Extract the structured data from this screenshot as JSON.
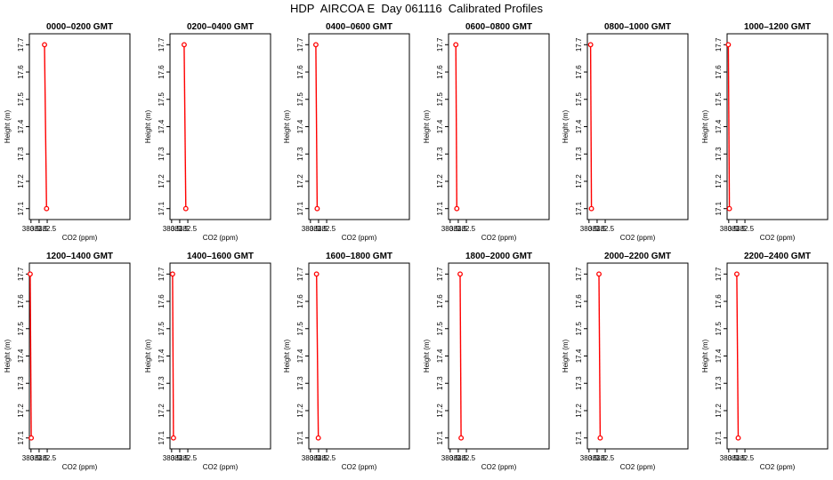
{
  "figure": {
    "title": "HDP  AIRCOA E  Day 061116  Calibrated Profiles"
  },
  "chart_data": [
    {
      "type": "line",
      "title": "0000–0200 GMT",
      "xlabel": "CO2 (ppm)",
      "ylabel": "Height (m)",
      "xlim": [
        380.3,
        392.7
      ],
      "ylim": [
        17.06,
        17.74
      ],
      "xticks": [
        380.5,
        381.5,
        382.5
      ],
      "yticks": [
        17.1,
        17.2,
        17.3,
        17.4,
        17.5,
        17.6,
        17.7
      ],
      "series": [
        {
          "x": [
            382.17,
            382.42
          ],
          "y": [
            17.7,
            17.1
          ],
          "color": "#ff0000"
        }
      ]
    },
    {
      "type": "line",
      "title": "0200–0400 GMT",
      "xlabel": "CO2 (ppm)",
      "ylabel": "Height (m)",
      "xlim": [
        380.3,
        392.7
      ],
      "ylim": [
        17.06,
        17.74
      ],
      "xticks": [
        380.5,
        381.5,
        382.5
      ],
      "yticks": [
        17.1,
        17.2,
        17.3,
        17.4,
        17.5,
        17.6,
        17.7
      ],
      "series": [
        {
          "x": [
            382.05,
            382.25
          ],
          "y": [
            17.7,
            17.1
          ],
          "color": "#ff0000"
        }
      ]
    },
    {
      "type": "line",
      "title": "0400–0600 GMT",
      "xlabel": "CO2 (ppm)",
      "ylabel": "Height (m)",
      "xlim": [
        380.3,
        392.7
      ],
      "ylim": [
        17.06,
        17.74
      ],
      "xticks": [
        380.5,
        381.5,
        382.5
      ],
      "yticks": [
        17.1,
        17.2,
        17.3,
        17.4,
        17.5,
        17.6,
        17.7
      ],
      "series": [
        {
          "x": [
            381.17,
            381.33
          ],
          "y": [
            17.7,
            17.1
          ],
          "color": "#ff0000"
        }
      ]
    },
    {
      "type": "line",
      "title": "0600–0800 GMT",
      "xlabel": "CO2 (ppm)",
      "ylabel": "Height (m)",
      "xlim": [
        380.3,
        392.7
      ],
      "ylim": [
        17.06,
        17.74
      ],
      "xticks": [
        380.5,
        381.5,
        382.5
      ],
      "yticks": [
        17.1,
        17.2,
        17.3,
        17.4,
        17.5,
        17.6,
        17.7
      ],
      "series": [
        {
          "x": [
            381.2,
            381.32
          ],
          "y": [
            17.7,
            17.1
          ],
          "color": "#ff0000"
        }
      ]
    },
    {
      "type": "line",
      "title": "0800–1000 GMT",
      "xlabel": "CO2 (ppm)",
      "ylabel": "Height (m)",
      "xlim": [
        380.3,
        392.7
      ],
      "ylim": [
        17.06,
        17.74
      ],
      "xticks": [
        380.5,
        381.5,
        382.5
      ],
      "yticks": [
        17.1,
        17.2,
        17.3,
        17.4,
        17.5,
        17.6,
        17.7
      ],
      "series": [
        {
          "x": [
            380.7,
            380.8
          ],
          "y": [
            17.7,
            17.1
          ],
          "color": "#ff0000"
        }
      ]
    },
    {
      "type": "line",
      "title": "1000–1200 GMT",
      "xlabel": "CO2 (ppm)",
      "ylabel": "Height (m)",
      "xlim": [
        380.3,
        392.7
      ],
      "ylim": [
        17.06,
        17.74
      ],
      "xticks": [
        380.5,
        381.5,
        382.5
      ],
      "yticks": [
        17.1,
        17.2,
        17.3,
        17.4,
        17.5,
        17.6,
        17.7
      ],
      "series": [
        {
          "x": [
            380.45,
            380.58
          ],
          "y": [
            17.7,
            17.1
          ],
          "color": "#ff0000"
        }
      ]
    },
    {
      "type": "line",
      "title": "1200–1400 GMT",
      "xlabel": "CO2 (ppm)",
      "ylabel": "Height (m)",
      "xlim": [
        380.3,
        392.7
      ],
      "ylim": [
        17.06,
        17.74
      ],
      "xticks": [
        380.5,
        381.5,
        382.5
      ],
      "yticks": [
        17.1,
        17.2,
        17.3,
        17.4,
        17.5,
        17.6,
        17.7
      ],
      "series": [
        {
          "x": [
            380.4,
            380.53
          ],
          "y": [
            17.7,
            17.1
          ],
          "color": "#ff0000"
        }
      ]
    },
    {
      "type": "line",
      "title": "1400–1600 GMT",
      "xlabel": "CO2 (ppm)",
      "ylabel": "Height (m)",
      "xlim": [
        380.3,
        392.7
      ],
      "ylim": [
        17.06,
        17.74
      ],
      "xticks": [
        380.5,
        381.5,
        382.5
      ],
      "yticks": [
        17.1,
        17.2,
        17.3,
        17.4,
        17.5,
        17.6,
        17.7
      ],
      "series": [
        {
          "x": [
            380.62,
            380.73
          ],
          "y": [
            17.7,
            17.1
          ],
          "color": "#ff0000"
        }
      ]
    },
    {
      "type": "line",
      "title": "1600–1800 GMT",
      "xlabel": "CO2 (ppm)",
      "ylabel": "Height (m)",
      "xlim": [
        380.3,
        392.7
      ],
      "ylim": [
        17.06,
        17.74
      ],
      "xticks": [
        380.5,
        381.5,
        382.5
      ],
      "yticks": [
        17.1,
        17.2,
        17.3,
        17.4,
        17.5,
        17.6,
        17.7
      ],
      "series": [
        {
          "x": [
            381.25,
            381.47
          ],
          "y": [
            17.7,
            17.1
          ],
          "color": "#ff0000"
        }
      ]
    },
    {
      "type": "line",
      "title": "1800–2000 GMT",
      "xlabel": "CO2 (ppm)",
      "ylabel": "Height (m)",
      "xlim": [
        380.3,
        392.7
      ],
      "ylim": [
        17.06,
        17.74
      ],
      "xticks": [
        380.5,
        381.5,
        382.5
      ],
      "yticks": [
        17.1,
        17.2,
        17.3,
        17.4,
        17.5,
        17.6,
        17.7
      ],
      "series": [
        {
          "x": [
            381.73,
            381.85
          ],
          "y": [
            17.7,
            17.1
          ],
          "color": "#ff0000"
        }
      ]
    },
    {
      "type": "line",
      "title": "2000–2200 GMT",
      "xlabel": "CO2 (ppm)",
      "ylabel": "Height (m)",
      "xlim": [
        380.3,
        392.7
      ],
      "ylim": [
        17.06,
        17.74
      ],
      "xticks": [
        380.5,
        381.5,
        382.5
      ],
      "yticks": [
        17.1,
        17.2,
        17.3,
        17.4,
        17.5,
        17.6,
        17.7
      ],
      "series": [
        {
          "x": [
            381.73,
            381.88
          ],
          "y": [
            17.7,
            17.1
          ],
          "color": "#ff0000"
        }
      ]
    },
    {
      "type": "line",
      "title": "2200–2400 GMT",
      "xlabel": "CO2 (ppm)",
      "ylabel": "Height (m)",
      "xlim": [
        380.3,
        392.7
      ],
      "ylim": [
        17.06,
        17.74
      ],
      "xticks": [
        380.5,
        381.5,
        382.5
      ],
      "yticks": [
        17.1,
        17.2,
        17.3,
        17.4,
        17.5,
        17.6,
        17.7
      ],
      "series": [
        {
          "x": [
            381.5,
            381.67
          ],
          "y": [
            17.7,
            17.1
          ],
          "color": "#ff0000"
        }
      ]
    }
  ]
}
